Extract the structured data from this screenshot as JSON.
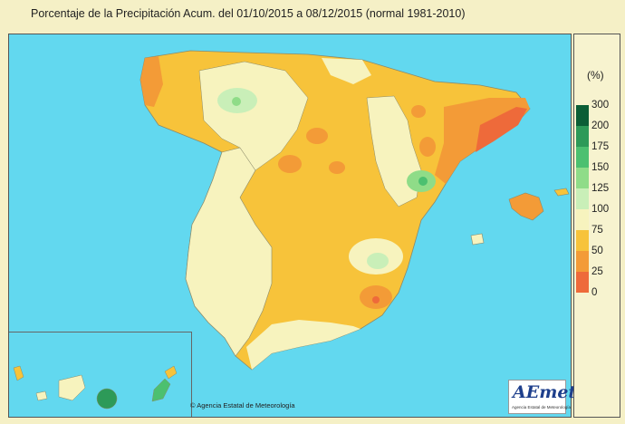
{
  "title": "Porcentaje de la Precipitación Acum. del 01/10/2015 a  08/12/2015  (normal 1981-2010)",
  "credit": "© Agencia Estatal de Meteorología",
  "logo": {
    "text": "AEmet",
    "subtitle": "Agencia Estatal de Meteorología"
  },
  "legend": {
    "unit": "(%)",
    "ticks": [
      "300",
      "200",
      "175",
      "150",
      "125",
      "100",
      "75",
      "50",
      "25",
      "0"
    ],
    "colors": [
      "#0b5e36",
      "#2d9a58",
      "#4cc070",
      "#8fdc88",
      "#c9efb8",
      "#f7f3be",
      "#f7c33a",
      "#f39b37",
      "#ee6a3a"
    ]
  },
  "map_colors": {
    "sea": "#62d8ef",
    "p0_25": "#ee6a3a",
    "p25_50": "#f39b37",
    "p50_75": "#f7c33a",
    "p75_100": "#f7f3be",
    "p100_125": "#c9efb8",
    "p125_150": "#8fdc88",
    "p150_175": "#4cc070"
  }
}
